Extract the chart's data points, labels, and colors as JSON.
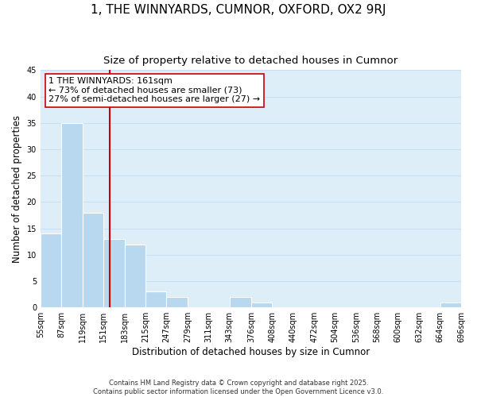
{
  "title": "1, THE WINNYARDS, CUMNOR, OXFORD, OX2 9RJ",
  "subtitle": "Size of property relative to detached houses in Cumnor",
  "xlabel": "Distribution of detached houses by size in Cumnor",
  "ylabel": "Number of detached properties",
  "footer_line1": "Contains HM Land Registry data © Crown copyright and database right 2025.",
  "footer_line2": "Contains public sector information licensed under the Open Government Licence v3.0.",
  "bin_edges": [
    55,
    87,
    119,
    151,
    183,
    215,
    247,
    279,
    311,
    343,
    376,
    408,
    440,
    472,
    504,
    536,
    568,
    600,
    632,
    664,
    696
  ],
  "bar_heights": [
    14,
    35,
    18,
    13,
    12,
    3,
    2,
    0,
    0,
    2,
    1,
    0,
    0,
    0,
    0,
    0,
    0,
    0,
    0,
    1
  ],
  "bar_color": "#b8d8f0",
  "bar_edgecolor": "#ffffff",
  "grid_color": "#c8dff0",
  "background_color": "#ddeef8",
  "vline_x": 161,
  "vline_color": "#cc0000",
  "ylim": [
    0,
    45
  ],
  "yticks": [
    0,
    5,
    10,
    15,
    20,
    25,
    30,
    35,
    40,
    45
  ],
  "annotation_text": "1 THE WINNYARDS: 161sqm\n← 73% of detached houses are smaller (73)\n27% of semi-detached houses are larger (27) →",
  "title_fontsize": 11,
  "subtitle_fontsize": 9.5,
  "tick_label_fontsize": 7,
  "axis_label_fontsize": 8.5,
  "annotation_fontsize": 8
}
